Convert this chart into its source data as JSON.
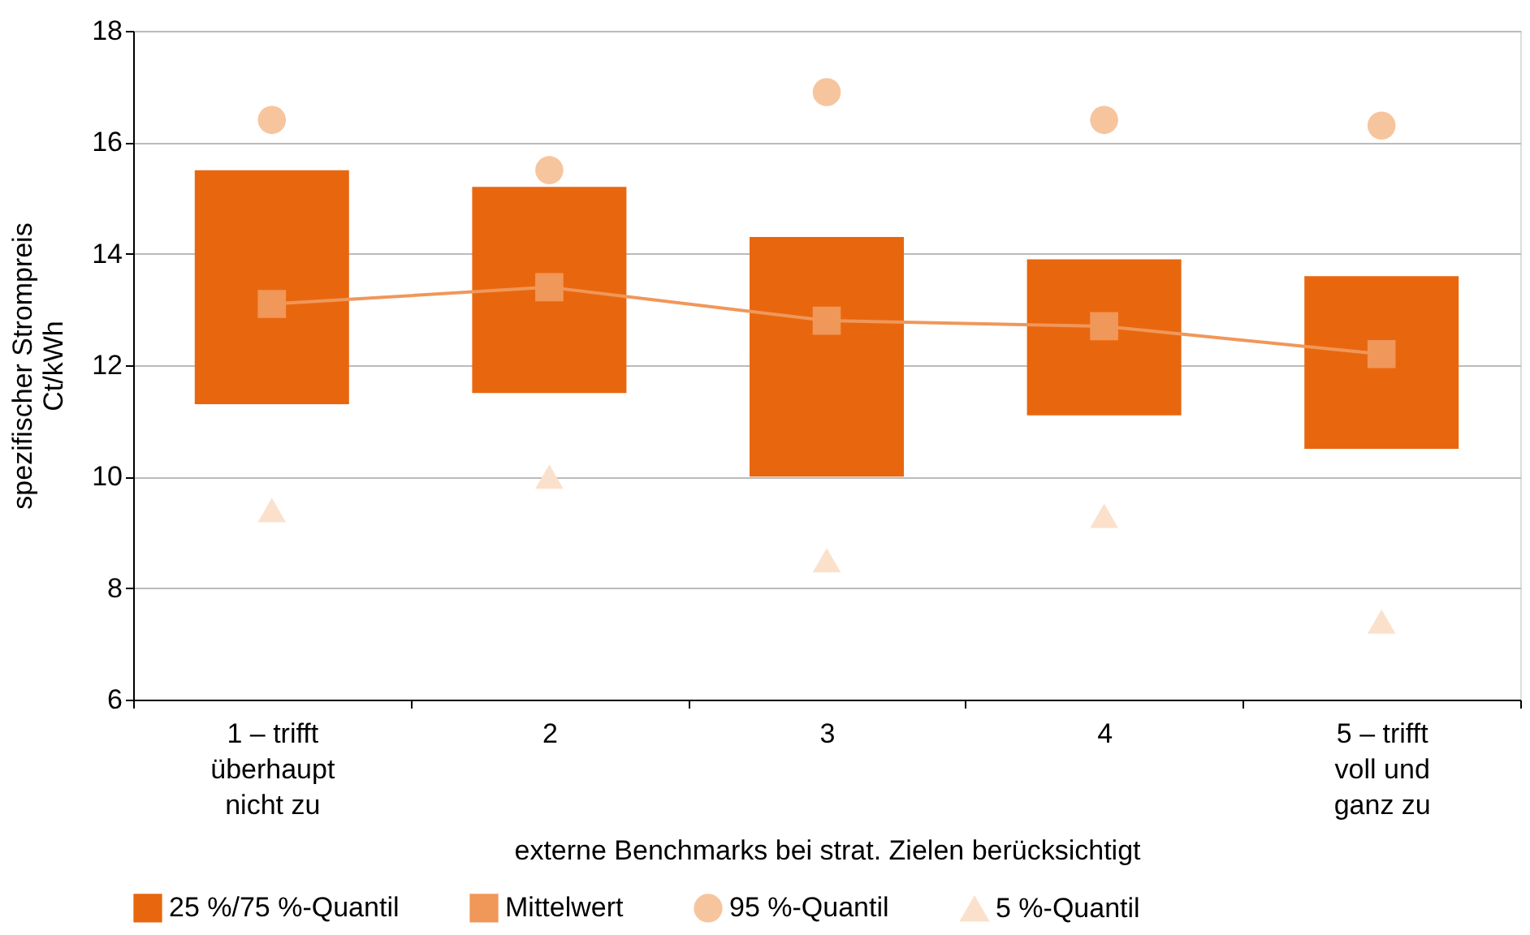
{
  "chart_data": {
    "type": "bar",
    "xlabel": "externe Benchmarks bei strat. Zielen berücksichtigt",
    "ylabel": "spezifischer Strompreis Ct/kWh",
    "categories": [
      "1 – trifft überhaupt nicht zu",
      "2",
      "3",
      "4",
      "5 – trifft voll und ganz zu"
    ],
    "ylim": [
      6,
      18
    ],
    "yticks": [
      6,
      8,
      10,
      12,
      14,
      16,
      18
    ],
    "grid": "y",
    "legend": "bottom",
    "series": [
      {
        "name": "25 %/75 %-Quantil",
        "color": "#e8670e",
        "marker": "square",
        "base": [
          11.3,
          11.5,
          10.0,
          11.1,
          10.5
        ],
        "values": [
          4.2,
          3.7,
          4.3,
          2.8,
          3.1
        ]
      },
      {
        "name": "Mittelwert",
        "type": "line",
        "color": "#f0975a",
        "marker": "square",
        "values": [
          13.1,
          13.4,
          12.8,
          12.7,
          12.2
        ]
      },
      {
        "name": "95 %-Quantil",
        "type": "scatter",
        "color": "#f7c59d",
        "marker": "circle",
        "values": [
          16.4,
          15.5,
          16.9,
          16.4,
          16.3
        ]
      },
      {
        "name": "5 %-Quantil",
        "type": "scatter",
        "color": "#fbe1cb",
        "marker": "triangle",
        "values": [
          9.4,
          10.0,
          8.5,
          9.3,
          7.4
        ]
      }
    ]
  }
}
